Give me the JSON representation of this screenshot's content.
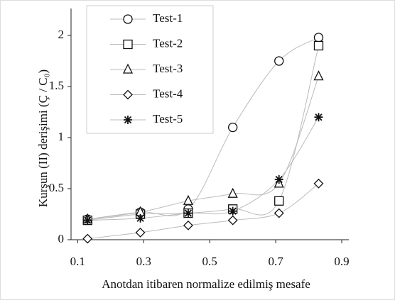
{
  "chart_data": {
    "type": "line",
    "xlabel": "Anotdan itibaren normalize edilmiş mesafe",
    "ylabel": "Kurşun (II) derişimi (Ç / C₀)",
    "x": [
      0.13,
      0.29,
      0.435,
      0.57,
      0.71,
      0.83
    ],
    "series": [
      {
        "name": "Test-1",
        "marker": "circle",
        "color": "#bbbbbb",
        "values": [
          0.2,
          0.27,
          0.3,
          1.1,
          1.75,
          1.98
        ]
      },
      {
        "name": "Test-2",
        "marker": "square",
        "color": "#bbbbbb",
        "values": [
          0.19,
          0.25,
          0.26,
          0.3,
          0.38,
          1.9
        ]
      },
      {
        "name": "Test-3",
        "marker": "triangle",
        "color": "#bbbbbb",
        "values": [
          0.2,
          0.27,
          0.38,
          0.45,
          0.55,
          1.6
        ]
      },
      {
        "name": "Test-4",
        "marker": "diamond",
        "color": "#bbbbbb",
        "values": [
          0.01,
          0.07,
          0.14,
          0.19,
          0.26,
          0.55
        ]
      },
      {
        "name": "Test-5",
        "marker": "star",
        "color": "#bbbbbb",
        "values": [
          0.19,
          0.21,
          0.26,
          0.28,
          0.59,
          1.2
        ]
      }
    ],
    "xlim": [
      0.08,
      0.9
    ],
    "xticks": [
      0.1,
      0.3,
      0.5,
      0.7,
      0.9
    ],
    "ylim": [
      0,
      2
    ],
    "yticks": [
      0,
      0.5,
      1,
      1.5,
      2
    ],
    "legend": "upper left"
  }
}
